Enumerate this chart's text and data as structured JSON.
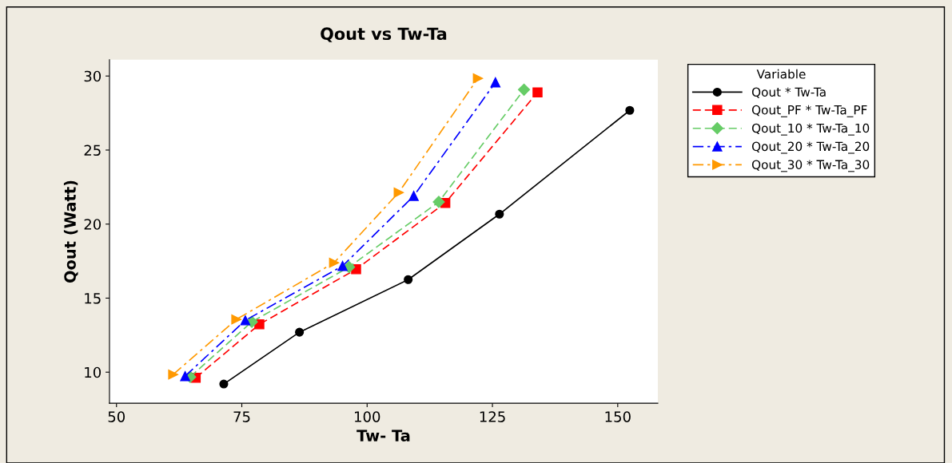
{
  "chart_data": {
    "type": "line",
    "title": "Qout vs Tw-Ta",
    "xlabel": "Tw- Ta",
    "ylabel": "Qout (Watt)",
    "legend_title": "Variable",
    "legend": "right",
    "grid": false,
    "xlim": [
      48.6,
      158.0
    ],
    "xticks": [
      50,
      75,
      100,
      125,
      150
    ],
    "ylim": [
      7.9,
      31.1
    ],
    "yticks": [
      10,
      15,
      20,
      25,
      30
    ],
    "series": [
      {
        "name": "Qout * Tw-Ta",
        "color": "#000000",
        "marker": "circle",
        "line_style": "solid",
        "x": [
          71.4,
          86.5,
          108.2,
          126.4,
          152.4
        ],
        "values": [
          9.2,
          12.7,
          16.25,
          20.67,
          27.68
        ]
      },
      {
        "name": "Qout_PF * Tw-Ta_PF",
        "color": "#ff0000",
        "marker": "square",
        "line_style": "dashed",
        "x": [
          65.8,
          78.5,
          97.8,
          115.6,
          134.0
        ],
        "values": [
          9.62,
          13.23,
          16.95,
          21.43,
          28.9
        ]
      },
      {
        "name": "Qout_10 * Tw-Ta_10",
        "color": "#66cc66",
        "marker": "diamond",
        "line_style": "dashed",
        "x": [
          64.7,
          77.0,
          96.4,
          114.3,
          131.3
        ],
        "values": [
          9.68,
          13.4,
          17.1,
          21.5,
          29.08
        ]
      },
      {
        "name": "Qout_20 * Tw-Ta_20",
        "color": "#0000ff",
        "marker": "triangle",
        "line_style": "dashdot",
        "x": [
          63.7,
          75.7,
          95.1,
          109.3,
          125.6
        ],
        "values": [
          9.73,
          13.5,
          17.17,
          21.9,
          29.57
        ]
      },
      {
        "name": "Qout_30 * Tw-Ta_30",
        "color": "#ff9900",
        "marker": "triangle-right",
        "line_style": "dashdot",
        "x": [
          61.3,
          73.9,
          93.4,
          106.3,
          122.1
        ],
        "values": [
          9.84,
          13.56,
          17.39,
          22.13,
          29.84
        ]
      }
    ]
  }
}
